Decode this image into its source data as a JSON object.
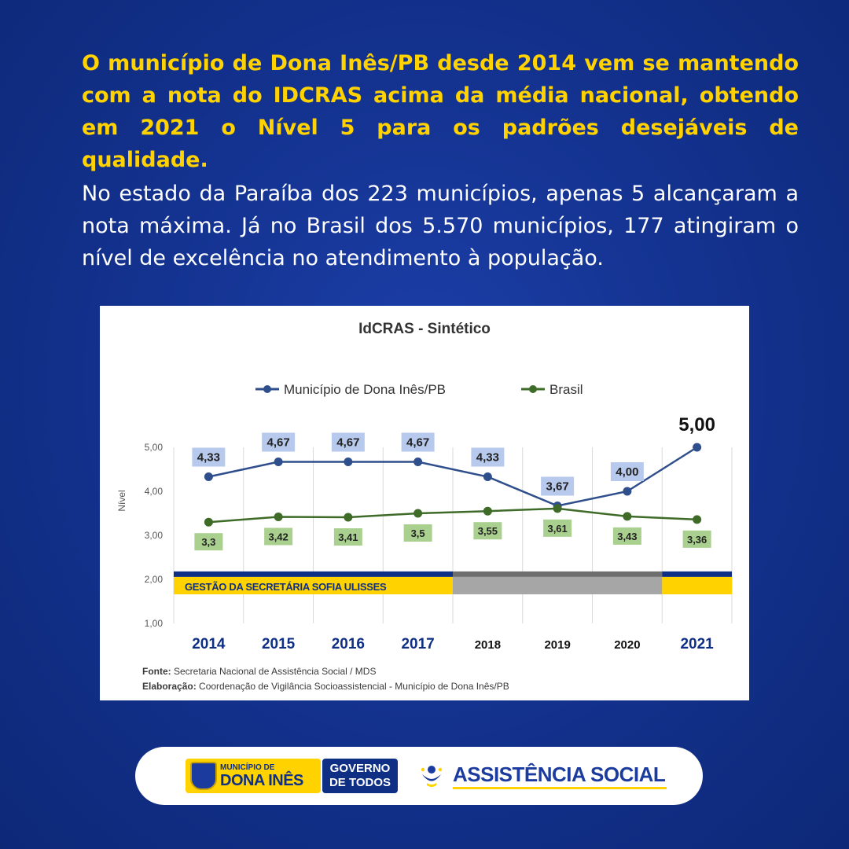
{
  "intro": {
    "highlight": "O município de Dona Inês/PB desde 2014 vem se mantendo com a nota do IDCRAS acima da média nacional, obtendo em 2021 o Nível 5 para os padrões desejáveis de qualidade.",
    "body": "No estado da Paraíba dos 223 municípios, apenas 5 alcançaram a nota máxima. Já no Brasil dos 5.570 municípios, 177 atingiram o nível de excelência no atendimento à população."
  },
  "chart_data": {
    "type": "line",
    "title": "IdCRAS - Sintético",
    "ylabel": "Nível",
    "xlabel": "",
    "ylim": [
      1,
      5
    ],
    "yticks": [
      "1,00",
      "2,00",
      "3,00",
      "4,00",
      "5,00"
    ],
    "categories": [
      "2014",
      "2015",
      "2016",
      "2017",
      "2018",
      "2019",
      "2020",
      "2021"
    ],
    "series": [
      {
        "name": "Município de Dona Inês/PB",
        "values": [
          4.33,
          4.67,
          4.67,
          4.67,
          4.33,
          3.67,
          4.0,
          5.0
        ],
        "labels": [
          "4,33",
          "4,67",
          "4,67",
          "4,67",
          "4,33",
          "3,67",
          "4,00",
          "5,00"
        ],
        "color": "#2f4e8c"
      },
      {
        "name": "Brasil",
        "values": [
          3.3,
          3.42,
          3.41,
          3.5,
          3.55,
          3.61,
          3.43,
          3.36
        ],
        "labels": [
          "3,3",
          "3,42",
          "3,41",
          "3,5",
          "3,55",
          "3,61",
          "3,43",
          "3,36"
        ],
        "color": "#3f6b28"
      }
    ],
    "highlighted_years": [
      "2014",
      "2015",
      "2016",
      "2017",
      "2021"
    ],
    "band": {
      "label": "GESTÃO DA SECRETÁRIA SOFIA ULISSES",
      "colors": {
        "navy": "#0f2f85",
        "yellow": "#ffd200",
        "gray": "#a6a6a6",
        "darkgray": "#6e6e6e"
      }
    },
    "source_label": "Fonte:",
    "source_text": "Secretaria Nacional de Assistência Social / MDS",
    "credit_label": "Elaboração:",
    "credit_text": "Coordenação de Vigilância Socioassistencial - Município de Dona Inês/PB"
  },
  "footer": {
    "mun_small": "MUNICÍPIO DE",
    "mun_big": "DONA INÊS",
    "gov_line1": "GOVERNO",
    "gov_line2": "DE TODOS",
    "assist": "ASSISTÊNCIA SOCIAL"
  },
  "colors": {
    "background": "#143391",
    "highlight_text": "#ffd200",
    "dona_label_bg": "#b7c9ec",
    "brasil_label_bg": "#a9d08e"
  }
}
